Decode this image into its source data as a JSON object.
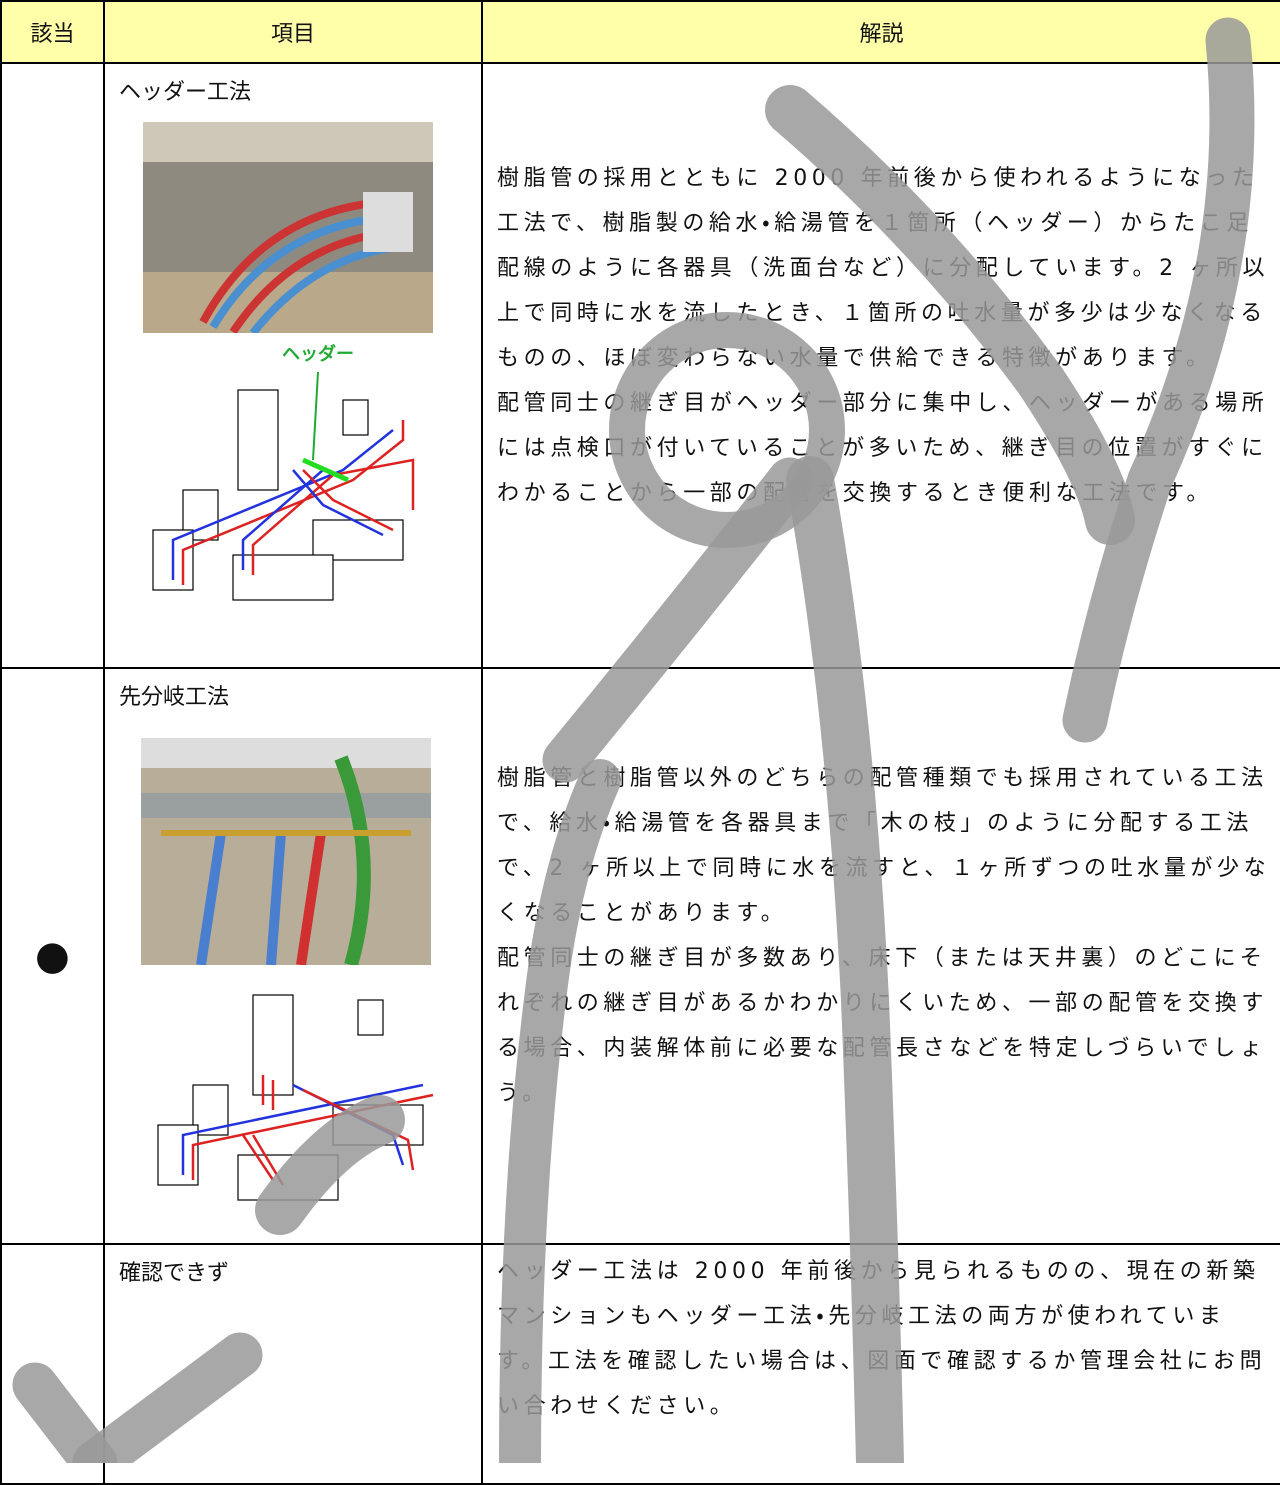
{
  "table": {
    "header": [
      "該当",
      "項目",
      "解説"
    ],
    "rows": [
      {
        "item": "ヘッダー工法",
        "diagram_label": "ヘッダー",
        "description": [
          "樹脂管の採用とともに 2000 年前後から使われるようになった工法で、樹脂製の給水・給湯管を１箇所（ヘッダー）からたこ足配線のように各器具（洗面台など）に分配しています。2 ヶ所以上で同時に水を流したとき、１箇所の吐水量が多少は少なくなるものの、ほぼ変わらない水量で供給できる特徴があります。",
          "配管同士の継ぎ目がヘッダー部分に集中し、ヘッダーがある場所には点検口が付いていることが多いため、継ぎ目の位置がすぐにわかることから一部の配管を交換するとき便利な工法です。"
        ]
      },
      {
        "mark": "●",
        "item": "先分岐工法",
        "description": [
          "樹脂管と樹脂管以外のどちらの配管種類でも採用されている工法で、給水・給湯管を各器具まで「木の枝」のように分配する工法で、2 ヶ所以上で同時に水を流すと、１ヶ所ずつの吐水量が少なくなることがあります。",
          "配管同士の継ぎ目が多数あり、床下（または天井裏）のどこにそれぞれの継ぎ目があるかわかりにくいため、一部の配管を交換する場合、内装解体前に必要な配管長さなどを特定しづらいでしょう。"
        ]
      },
      {
        "item": "確認できず",
        "description": [
          "ヘッダー工法は 2000 年前後から見られるものの、現在の新築マンションもヘッダー工法・先分岐工法の両方が使われています。工法を確認したい場合は、図面で確認するか管理会社にお問い合わせください。"
        ]
      }
    ]
  }
}
